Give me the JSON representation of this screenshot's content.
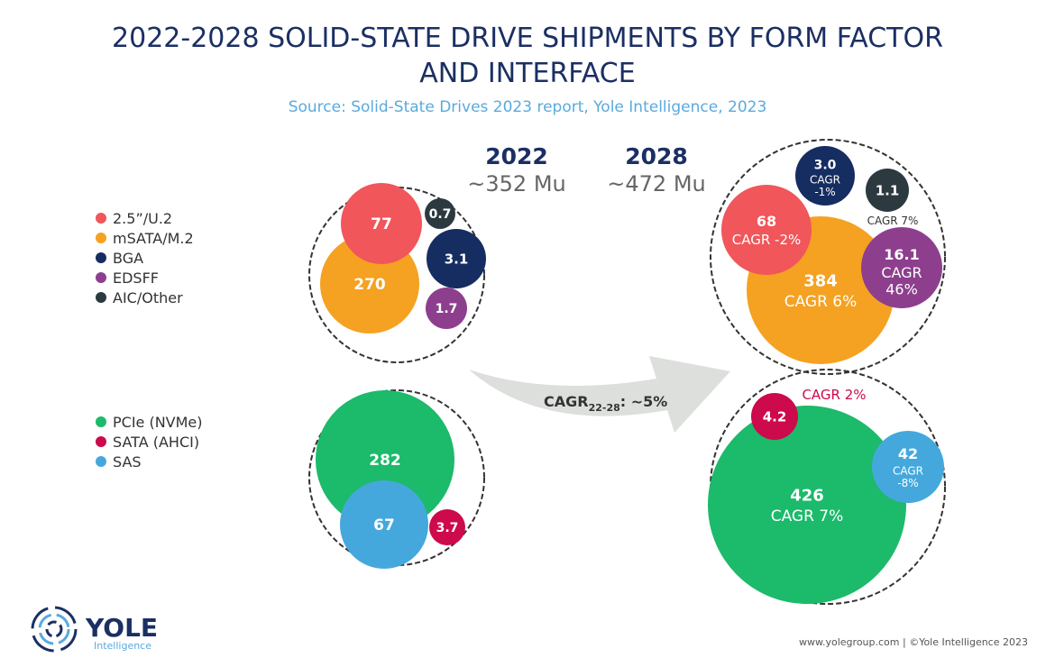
{
  "chart_data": {
    "type": "bubble",
    "title": "2022-2028 SOLID-STATE DRIVE SHIPMENTS BY FORM FACTOR AND INTERFACE",
    "title_lines": [
      "2022-2028 SOLID-STATE DRIVE SHIPMENTS BY FORM FACTOR",
      "AND INTERFACE"
    ],
    "subtitle": "Source: Solid-State Drives 2023 report, Yole Intelligence, 2023",
    "years": [
      {
        "year": "2022",
        "total": "~352 Mu"
      },
      {
        "year": "2028",
        "total": "~472 Mu"
      }
    ],
    "overall_cagr": {
      "label": "CAGR",
      "sub": "22-28",
      "value": ": ~5%"
    },
    "legend_form_factor": [
      {
        "name": "2.5”/U.2",
        "color": "#f0565a"
      },
      {
        "name": "mSATA/M.2",
        "color": "#f5a122"
      },
      {
        "name": "BGA",
        "color": "#162d61"
      },
      {
        "name": "EDSFF",
        "color": "#8d3f8e"
      },
      {
        "name": "AIC/Other",
        "color": "#2c3a40"
      }
    ],
    "legend_interface": [
      {
        "name": "PCIe (NVMe)",
        "color": "#1cba6b"
      },
      {
        "name": "SATA (AHCI)",
        "color": "#cc0a4c"
      },
      {
        "name": "SAS",
        "color": "#45a8dd"
      }
    ],
    "form_factor": {
      "2022": [
        {
          "series": "mSATA/M.2",
          "value": 270,
          "label": "270"
        },
        {
          "series": "2.5”/U.2",
          "value": 77,
          "label": "77"
        },
        {
          "series": "AIC/Other",
          "value": 0.7,
          "label": "0.7"
        },
        {
          "series": "BGA",
          "value": 3.1,
          "label": "3.1"
        },
        {
          "series": "EDSFF",
          "value": 1.7,
          "label": "1.7"
        }
      ],
      "2028": [
        {
          "series": "mSATA/M.2",
          "value": 384,
          "label": "384",
          "cagr": "CAGR 6%"
        },
        {
          "series": "2.5”/U.2",
          "value": 68,
          "label": "68",
          "cagr": "CAGR -2%"
        },
        {
          "series": "BGA",
          "value": 3.0,
          "label": "3.0",
          "cagr": "CAGR -1%"
        },
        {
          "series": "AIC/Other",
          "value": 1.1,
          "label": "1.1",
          "cagr": "CAGR 7%"
        },
        {
          "series": "EDSFF",
          "value": 16.1,
          "label": "16.1",
          "cagr": "CAGR 46%"
        }
      ]
    },
    "interface": {
      "2022": [
        {
          "series": "PCIe (NVMe)",
          "value": 282,
          "label": "282"
        },
        {
          "series": "SAS",
          "value": 67,
          "label": "67"
        },
        {
          "series": "SATA (AHCI)",
          "value": 3.7,
          "label": "3.7"
        }
      ],
      "2028": [
        {
          "series": "PCIe (NVMe)",
          "value": 426,
          "label": "426",
          "cagr": "CAGR 7%"
        },
        {
          "series": "SATA (AHCI)",
          "value": 4.2,
          "label": "4.2",
          "cagr": "CAGR 2%"
        },
        {
          "series": "SAS",
          "value": 42,
          "label": "42",
          "cagr": "CAGR -8%"
        }
      ]
    }
  },
  "logo": {
    "name": "YOLE",
    "sub": "Intelligence"
  },
  "footer": "www.yolegroup.com | ©Yole Intelligence 2023"
}
